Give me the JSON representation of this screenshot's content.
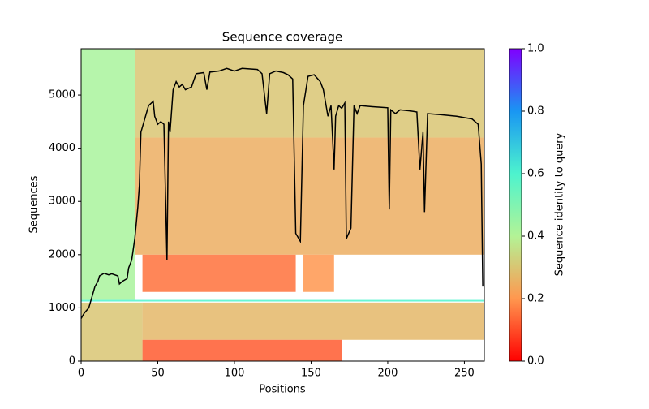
{
  "chart_data": {
    "type": "coverage",
    "title": "Sequence coverage",
    "xlabel": "Positions",
    "ylabel": "Sequences",
    "xlim": [
      0,
      263
    ],
    "ylim": [
      0,
      5870
    ],
    "xticks": [
      0,
      50,
      100,
      150,
      200,
      250
    ],
    "yticks": [
      0,
      1000,
      2000,
      3000,
      4000,
      5000
    ],
    "x": [
      0,
      2,
      5,
      7,
      9,
      11,
      12,
      15,
      18,
      20,
      24,
      25,
      27,
      30,
      31,
      33,
      35,
      37,
      38,
      39,
      42,
      44,
      47,
      48,
      50,
      52,
      54,
      56,
      57,
      58,
      60,
      62,
      64,
      66,
      68,
      72,
      75,
      80,
      82,
      84,
      90,
      95,
      100,
      105,
      115,
      118,
      121,
      123,
      127,
      132,
      135,
      138,
      140,
      143,
      145,
      148,
      152,
      156,
      158,
      161,
      163,
      165,
      166,
      168,
      170,
      172,
      173,
      176,
      178,
      180,
      182,
      190,
      195,
      200,
      201,
      202,
      205,
      208,
      215,
      219,
      221,
      223,
      224,
      226,
      235,
      245,
      255,
      259,
      261,
      262
    ],
    "series": [
      {
        "color": "#000000",
        "values": [
          800,
          900,
          1000,
          1200,
          1400,
          1500,
          1600,
          1650,
          1620,
          1640,
          1600,
          1450,
          1500,
          1550,
          1750,
          1900,
          2300,
          2900,
          3300,
          4300,
          4600,
          4800,
          4880,
          4600,
          4450,
          4500,
          4450,
          1900,
          4500,
          4300,
          5100,
          5250,
          5150,
          5200,
          5100,
          5150,
          5400,
          5420,
          5100,
          5430,
          5450,
          5500,
          5450,
          5500,
          5480,
          5400,
          4650,
          5400,
          5450,
          5420,
          5380,
          5300,
          2400,
          2250,
          4800,
          5350,
          5380,
          5250,
          5100,
          4600,
          4800,
          3600,
          4600,
          4800,
          4750,
          4850,
          2300,
          2500,
          4800,
          4650,
          4800,
          4780,
          4770,
          4760,
          2850,
          4720,
          4650,
          4720,
          4700,
          4680,
          3600,
          4300,
          2800,
          4650,
          4630,
          4600,
          4550,
          4450,
          3700,
          1400
        ]
      }
    ],
    "blocks": [
      {
        "x": [
          0,
          35
        ],
        "y": [
          1150,
          5870
        ],
        "value": 0.42
      },
      {
        "x": [
          35,
          263
        ],
        "y": [
          4200,
          5870
        ],
        "value": 0.3
      },
      {
        "x": [
          35,
          263
        ],
        "y": [
          2000,
          4200
        ],
        "value": 0.25
      },
      {
        "x": [
          40,
          140
        ],
        "y": [
          1300,
          2000
        ],
        "value": 0.15
      },
      {
        "x": [
          145,
          165
        ],
        "y": [
          1300,
          2000
        ],
        "value": 0.2
      },
      {
        "x": [
          0,
          263
        ],
        "y": [
          1120,
          1150
        ],
        "value": 0.6
      },
      {
        "x": [
          40,
          263
        ],
        "y": [
          400,
          1100
        ],
        "value": 0.27
      },
      {
        "x": [
          40,
          170
        ],
        "y": [
          0,
          400
        ],
        "value": 0.12
      },
      {
        "x": [
          0,
          40
        ],
        "y": [
          0,
          1100
        ],
        "value": 0.3
      }
    ],
    "colormap": [
      "#ff0000",
      "#ff974f",
      "#b3f396",
      "#4df3ce",
      "#1996f3",
      "#8000ff"
    ],
    "clim": [
      0,
      1
    ],
    "cticks": [
      {
        "value": 0,
        "label": "0.0"
      },
      0.2,
      0.4,
      0.6,
      0.8,
      {
        "value": 1,
        "label": "1.0"
      }
    ],
    "clabel": "Sequence identity to query"
  }
}
